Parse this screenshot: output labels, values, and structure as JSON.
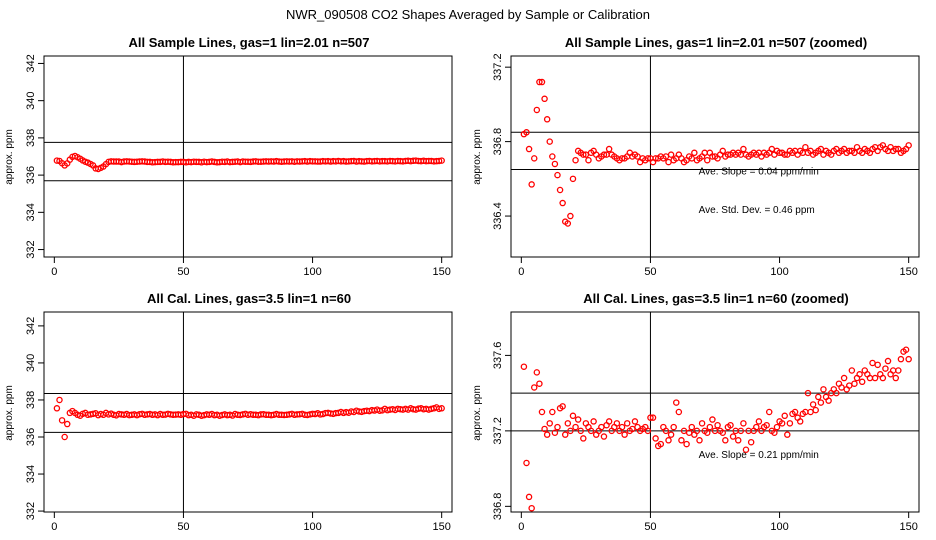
{
  "suptitle": "NWR_090508  CO2 Shapes Averaged by Sample or Calibration",
  "chart_data": [
    {
      "type": "scatter",
      "title": "All Sample Lines, gas=1 lin=2.01 n=507",
      "xlabel": "",
      "ylabel": "approx. ppm",
      "xlim": [
        -4,
        154
      ],
      "ylim": [
        331.6,
        342.4
      ],
      "xticks": [
        0,
        50,
        100,
        150
      ],
      "yticks": [
        332,
        334,
        336,
        338,
        340,
        342
      ],
      "vline": 50,
      "hlines": [
        335.7,
        337.76
      ],
      "marker_color": "#ff0000",
      "x": [
        1,
        2,
        3,
        4,
        5,
        6,
        7,
        8,
        9,
        10,
        11,
        12,
        13,
        14,
        15,
        16,
        17,
        18,
        19,
        20,
        21,
        22,
        23,
        24,
        25,
        26,
        27,
        28,
        29,
        30,
        31,
        32,
        33,
        34,
        35,
        36,
        37,
        38,
        39,
        40,
        41,
        42,
        43,
        44,
        45,
        46,
        47,
        48,
        49,
        50,
        51,
        52,
        53,
        54,
        55,
        56,
        57,
        58,
        59,
        60,
        61,
        62,
        63,
        64,
        65,
        66,
        67,
        68,
        69,
        70,
        71,
        72,
        73,
        74,
        75,
        76,
        77,
        78,
        79,
        80,
        81,
        82,
        83,
        84,
        85,
        86,
        87,
        88,
        89,
        90,
        91,
        92,
        93,
        94,
        95,
        96,
        97,
        98,
        99,
        100,
        101,
        102,
        103,
        104,
        105,
        106,
        107,
        108,
        109,
        110,
        111,
        112,
        113,
        114,
        115,
        116,
        117,
        118,
        119,
        120,
        121,
        122,
        123,
        124,
        125,
        126,
        127,
        128,
        129,
        130,
        131,
        132,
        133,
        134,
        135,
        136,
        137,
        138,
        139,
        140,
        141,
        142,
        143,
        144,
        145,
        146,
        147,
        148,
        149,
        150
      ],
      "y": [
        336.78,
        336.76,
        336.64,
        336.52,
        336.63,
        336.83,
        336.98,
        337.03,
        336.96,
        336.88,
        336.79,
        336.72,
        336.67,
        336.6,
        336.52,
        336.36,
        336.33,
        336.39,
        336.46,
        336.59,
        336.71,
        336.74,
        336.73,
        336.73,
        336.73,
        336.7,
        336.73,
        336.74,
        336.73,
        336.72,
        336.71,
        336.72,
        336.73,
        336.74,
        336.73,
        336.71,
        336.71,
        336.69,
        336.7,
        336.71,
        336.71,
        336.73,
        336.71,
        336.72,
        336.71,
        336.69,
        336.7,
        336.7,
        336.71,
        336.71,
        336.69,
        336.71,
        336.7,
        336.72,
        336.71,
        336.71,
        336.69,
        336.72,
        336.7,
        336.71,
        336.73,
        336.71,
        336.69,
        336.7,
        336.72,
        336.71,
        336.73,
        336.7,
        336.71,
        336.72,
        336.73,
        336.7,
        336.73,
        336.72,
        336.72,
        336.71,
        336.73,
        336.74,
        336.72,
        336.72,
        336.73,
        336.74,
        336.73,
        336.74,
        336.73,
        336.75,
        336.73,
        336.72,
        336.73,
        336.74,
        336.73,
        336.74,
        336.72,
        336.74,
        336.73,
        336.74,
        336.75,
        336.73,
        336.75,
        336.74,
        336.74,
        336.73,
        336.73,
        336.75,
        336.74,
        336.75,
        336.73,
        336.75,
        336.74,
        336.76,
        336.74,
        336.75,
        336.73,
        336.74,
        336.75,
        336.76,
        336.73,
        336.75,
        336.74,
        336.73,
        336.75,
        336.76,
        336.74,
        336.75,
        336.76,
        336.74,
        336.75,
        336.75,
        336.74,
        336.76,
        336.75,
        336.74,
        336.76,
        336.75,
        336.74,
        336.76,
        336.77,
        336.75,
        336.77,
        336.78,
        336.76,
        336.75,
        336.77,
        336.75,
        336.76,
        336.76,
        336.74,
        336.75,
        336.76,
        336.78
      ]
    },
    {
      "type": "scatter",
      "title": "All Sample Lines, gas=1 lin=2.01 n=507 (zoomed)",
      "xlabel": "",
      "ylabel": "approx. ppm",
      "xlim": [
        -4,
        154
      ],
      "ylim": [
        336.18,
        337.26
      ],
      "xticks": [
        0,
        50,
        100,
        150
      ],
      "yticks": [
        336.4,
        336.8,
        337.2
      ],
      "vline": 50,
      "hlines": [
        336.65,
        336.85
      ],
      "marker_color": "#ff0000",
      "annotations": [
        "Ave. Slope =  0.04  ppm/min",
        "Ave. Std. Dev. =  0.46  ppm"
      ],
      "x": [
        1,
        2,
        3,
        4,
        5,
        6,
        7,
        8,
        9,
        10,
        11,
        12,
        13,
        14,
        15,
        16,
        17,
        18,
        19,
        20,
        21,
        22,
        23,
        24,
        25,
        26,
        27,
        28,
        29,
        30,
        31,
        32,
        33,
        34,
        35,
        36,
        37,
        38,
        39,
        40,
        41,
        42,
        43,
        44,
        45,
        46,
        47,
        48,
        49,
        50,
        51,
        52,
        53,
        54,
        55,
        56,
        57,
        58,
        59,
        60,
        61,
        62,
        63,
        64,
        65,
        66,
        67,
        68,
        69,
        70,
        71,
        72,
        73,
        74,
        75,
        76,
        77,
        78,
        79,
        80,
        81,
        82,
        83,
        84,
        85,
        86,
        87,
        88,
        89,
        90,
        91,
        92,
        93,
        94,
        95,
        96,
        97,
        98,
        99,
        100,
        101,
        102,
        103,
        104,
        105,
        106,
        107,
        108,
        109,
        110,
        111,
        112,
        113,
        114,
        115,
        116,
        117,
        118,
        119,
        120,
        121,
        122,
        123,
        124,
        125,
        126,
        127,
        128,
        129,
        130,
        131,
        132,
        133,
        134,
        135,
        136,
        137,
        138,
        139,
        140,
        141,
        142,
        143,
        144,
        145,
        146,
        147,
        148,
        149,
        150
      ],
      "y": [
        336.84,
        336.85,
        336.76,
        336.57,
        336.71,
        336.97,
        337.12,
        337.12,
        337.03,
        336.92,
        336.8,
        336.72,
        336.68,
        336.62,
        336.54,
        336.47,
        336.37,
        336.36,
        336.4,
        336.6,
        336.7,
        336.75,
        336.74,
        336.73,
        336.73,
        336.7,
        336.74,
        336.75,
        336.73,
        336.71,
        336.72,
        336.73,
        336.73,
        336.76,
        336.73,
        336.72,
        336.71,
        336.7,
        336.71,
        336.71,
        336.72,
        336.74,
        336.72,
        336.73,
        336.72,
        336.69,
        336.71,
        336.7,
        336.71,
        336.71,
        336.69,
        336.71,
        336.71,
        336.72,
        336.71,
        336.72,
        336.69,
        336.73,
        336.7,
        336.71,
        336.73,
        336.71,
        336.69,
        336.7,
        336.72,
        336.71,
        336.74,
        336.7,
        336.71,
        336.72,
        336.74,
        336.7,
        336.74,
        336.72,
        336.72,
        336.71,
        336.73,
        336.75,
        336.72,
        336.73,
        336.73,
        336.74,
        336.73,
        336.74,
        336.73,
        336.76,
        336.73,
        336.72,
        336.73,
        336.74,
        336.73,
        336.74,
        336.72,
        336.74,
        336.73,
        336.74,
        336.76,
        336.73,
        336.75,
        336.74,
        336.74,
        336.73,
        336.73,
        336.75,
        336.74,
        336.75,
        336.73,
        336.75,
        336.74,
        336.77,
        336.74,
        336.75,
        336.73,
        336.74,
        336.75,
        336.76,
        336.73,
        336.75,
        336.74,
        336.73,
        336.75,
        336.76,
        336.74,
        336.75,
        336.76,
        336.74,
        336.75,
        336.75,
        336.74,
        336.77,
        336.75,
        336.74,
        336.76,
        336.75,
        336.74,
        336.76,
        336.77,
        336.75,
        336.77,
        336.78,
        336.76,
        336.75,
        336.77,
        336.75,
        336.76,
        336.76,
        336.74,
        336.75,
        336.76,
        336.78
      ]
    },
    {
      "type": "scatter",
      "title": "All Cal. Lines, gas=3.5 lin=1 n=60",
      "xlabel": "",
      "ylabel": "approx. ppm",
      "xlim": [
        -4,
        154
      ],
      "ylim": [
        331.95,
        342.75
      ],
      "xticks": [
        0,
        50,
        100,
        150
      ],
      "yticks": [
        332,
        334,
        336,
        338,
        340,
        342
      ],
      "vline": 50,
      "hlines": [
        336.25,
        338.35
      ],
      "marker_color": "#ff0000",
      "x": [
        1,
        2,
        3,
        4,
        5,
        6,
        7,
        8,
        9,
        10,
        11,
        12,
        13,
        14,
        15,
        16,
        17,
        18,
        19,
        20,
        21,
        22,
        23,
        24,
        25,
        26,
        27,
        28,
        29,
        30,
        31,
        32,
        33,
        34,
        35,
        36,
        37,
        38,
        39,
        40,
        41,
        42,
        43,
        44,
        45,
        46,
        47,
        48,
        49,
        50,
        51,
        52,
        53,
        54,
        55,
        56,
        57,
        58,
        59,
        60,
        61,
        62,
        63,
        64,
        65,
        66,
        67,
        68,
        69,
        70,
        71,
        72,
        73,
        74,
        75,
        76,
        77,
        78,
        79,
        80,
        81,
        82,
        83,
        84,
        85,
        86,
        87,
        88,
        89,
        90,
        91,
        92,
        93,
        94,
        95,
        96,
        97,
        98,
        99,
        100,
        101,
        102,
        103,
        104,
        105,
        106,
        107,
        108,
        109,
        110,
        111,
        112,
        113,
        114,
        115,
        116,
        117,
        118,
        119,
        120,
        121,
        122,
        123,
        124,
        125,
        126,
        127,
        128,
        129,
        130,
        131,
        132,
        133,
        134,
        135,
        136,
        137,
        138,
        139,
        140,
        141,
        142,
        143,
        144,
        145,
        146,
        147,
        148,
        149,
        150
      ],
      "y": [
        337.55,
        338.0,
        336.9,
        336.0,
        336.7,
        337.3,
        337.4,
        337.3,
        337.2,
        337.15,
        337.25,
        337.3,
        337.2,
        337.22,
        337.25,
        337.28,
        337.18,
        337.24,
        337.2,
        337.3,
        337.22,
        337.26,
        337.2,
        337.17,
        337.24,
        337.22,
        337.2,
        337.24,
        337.18,
        337.2,
        337.22,
        337.18,
        337.23,
        337.25,
        337.2,
        337.22,
        337.24,
        337.2,
        337.22,
        337.18,
        337.24,
        337.2,
        337.21,
        337.25,
        337.22,
        337.2,
        337.21,
        337.22,
        337.2,
        337.24,
        337.25,
        337.18,
        337.2,
        337.15,
        337.22,
        337.2,
        337.15,
        337.18,
        337.22,
        337.2,
        337.24,
        337.18,
        337.2,
        337.15,
        337.19,
        337.22,
        337.18,
        337.2,
        337.16,
        337.24,
        337.2,
        337.19,
        337.22,
        337.25,
        337.2,
        337.23,
        337.2,
        337.2,
        337.18,
        337.22,
        337.23,
        337.2,
        337.2,
        337.18,
        337.2,
        337.24,
        337.2,
        337.2,
        337.19,
        337.2,
        337.22,
        337.25,
        337.2,
        337.22,
        337.23,
        337.25,
        337.2,
        337.19,
        337.22,
        337.25,
        337.24,
        337.28,
        337.22,
        337.24,
        337.29,
        337.3,
        337.27,
        337.25,
        337.29,
        337.3,
        337.35,
        337.3,
        337.34,
        337.31,
        337.38,
        337.35,
        337.42,
        337.38,
        337.36,
        337.4,
        337.42,
        337.4,
        337.45,
        337.43,
        337.48,
        337.42,
        337.44,
        337.52,
        337.45,
        337.48,
        337.5,
        337.46,
        337.52,
        337.5,
        337.48,
        337.52,
        337.48,
        337.55,
        337.5,
        337.48,
        337.53,
        337.55,
        337.5,
        337.52,
        337.48,
        337.52,
        337.55,
        337.6,
        337.52,
        337.55
      ]
    },
    {
      "type": "scatter",
      "title": "All Cal. Lines, gas=3.5 lin=1 n=60 (zoomed)",
      "xlabel": "",
      "ylabel": "approx. ppm",
      "xlim": [
        -4,
        154
      ],
      "ylim": [
        336.77,
        337.83
      ],
      "xticks": [
        0,
        50,
        100,
        150
      ],
      "yticks": [
        336.8,
        337.2,
        337.6
      ],
      "vline": 50,
      "hlines": [
        337.2,
        337.4
      ],
      "marker_color": "#ff0000",
      "annotations": [
        "Ave. Slope =  0.21  ppm/min"
      ],
      "x": [
        1,
        2,
        3,
        4,
        5,
        6,
        7,
        8,
        9,
        10,
        11,
        12,
        13,
        14,
        15,
        16,
        17,
        18,
        19,
        20,
        21,
        22,
        23,
        24,
        25,
        26,
        27,
        28,
        29,
        30,
        31,
        32,
        33,
        34,
        35,
        36,
        37,
        38,
        39,
        40,
        41,
        42,
        43,
        44,
        45,
        46,
        47,
        48,
        49,
        50,
        51,
        52,
        53,
        54,
        55,
        56,
        57,
        58,
        59,
        60,
        61,
        62,
        63,
        64,
        65,
        66,
        67,
        68,
        69,
        70,
        71,
        72,
        73,
        74,
        75,
        76,
        77,
        78,
        79,
        80,
        81,
        82,
        83,
        84,
        85,
        86,
        87,
        88,
        89,
        90,
        91,
        92,
        93,
        94,
        95,
        96,
        97,
        98,
        99,
        100,
        101,
        102,
        103,
        104,
        105,
        106,
        107,
        108,
        109,
        110,
        111,
        112,
        113,
        114,
        115,
        116,
        117,
        118,
        119,
        120,
        121,
        122,
        123,
        124,
        125,
        126,
        127,
        128,
        129,
        130,
        131,
        132,
        133,
        134,
        135,
        136,
        137,
        138,
        139,
        140,
        141,
        142,
        143,
        144,
        145,
        146,
        147,
        148,
        149,
        150
      ],
      "y": [
        337.54,
        337.03,
        336.85,
        336.79,
        337.43,
        337.51,
        337.45,
        337.3,
        337.21,
        337.18,
        337.24,
        337.3,
        337.19,
        337.22,
        337.32,
        337.33,
        337.18,
        337.24,
        337.2,
        337.28,
        337.22,
        337.26,
        337.2,
        337.16,
        337.24,
        337.22,
        337.2,
        337.25,
        337.18,
        337.2,
        337.22,
        337.17,
        337.23,
        337.25,
        337.2,
        337.22,
        337.24,
        337.2,
        337.22,
        337.18,
        337.24,
        337.2,
        337.21,
        337.25,
        337.22,
        337.2,
        337.21,
        337.22,
        337.2,
        337.27,
        337.27,
        337.16,
        337.12,
        337.13,
        337.22,
        337.2,
        337.15,
        337.18,
        337.22,
        337.35,
        337.3,
        337.15,
        337.2,
        337.13,
        337.19,
        337.22,
        337.18,
        337.2,
        337.15,
        337.24,
        337.2,
        337.19,
        337.22,
        337.26,
        337.2,
        337.23,
        337.2,
        337.19,
        337.15,
        337.22,
        337.23,
        337.17,
        337.2,
        337.15,
        337.2,
        337.24,
        337.1,
        337.2,
        337.14,
        337.2,
        337.22,
        337.25,
        337.2,
        337.22,
        337.23,
        337.3,
        337.2,
        337.19,
        337.22,
        337.25,
        337.24,
        337.28,
        337.18,
        337.24,
        337.29,
        337.3,
        337.27,
        337.25,
        337.29,
        337.3,
        337.4,
        337.3,
        337.34,
        337.31,
        337.38,
        337.35,
        337.42,
        337.38,
        337.36,
        337.4,
        337.42,
        337.4,
        337.45,
        337.43,
        337.48,
        337.42,
        337.44,
        337.52,
        337.45,
        337.48,
        337.5,
        337.46,
        337.52,
        337.5,
        337.48,
        337.56,
        337.48,
        337.55,
        337.5,
        337.48,
        337.53,
        337.57,
        337.5,
        337.52,
        337.48,
        337.52,
        337.58,
        337.62,
        337.63,
        337.58
      ]
    }
  ]
}
